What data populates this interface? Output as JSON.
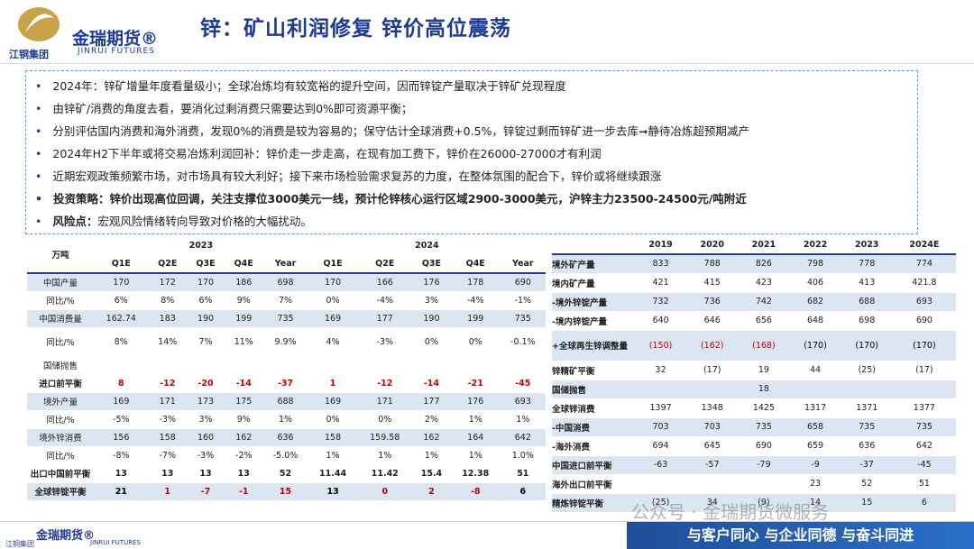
{
  "header": {
    "brand": "金瑞期货®",
    "brand_en": "JINRUI FUTURES",
    "group": "江铜集团",
    "title": "锌：矿山利润修复 锌价高位震荡"
  },
  "bullets": [
    {
      "text": "2024年：锌矿增量年度看量级小；全球冶炼均有较宽裕的提升空间，因而锌锭产量取决于锌矿兑现程度"
    },
    {
      "text": "由锌矿/消费的角度去看，要消化过剩消费只需要达到0%即可资源平衡；"
    },
    {
      "text": "分别评估国内消费和海外消费，发现0%的消费是较为容易的；保守估计全球消费+0.5%，锌锭过剩而锌矿进一步去库➞静待冶炼超预期减产"
    },
    {
      "text": "2024年H2下半年或将交易冶炼利润回补：锌价走一步走高，在现有加工费下，锌价在26000-27000才有利润"
    },
    {
      "text": "近期宏观政策频繁市场，对市场具有较大利好；接下来市场检验需求复苏的力度，在整体氛围的配合下，锌价或将继续跟涨"
    },
    {
      "text": "投资策略：锌价出现高位回调，关注支撑位3000美元一线，预计伦锌核心运行区域2900-3000美元，沪锌主力23500-24500元/吨附近",
      "bold": true
    },
    {
      "lead": "风险点：",
      "text": "宏观风险情绪转向导致对价格的大幅扰动。"
    }
  ],
  "left_table": {
    "corner": "万吨",
    "years": [
      "2023",
      "2024"
    ],
    "columns": [
      "Q1E",
      "Q2E",
      "Q3E",
      "Q4E",
      "Year",
      "Q1E",
      "Q2E",
      "Q3E",
      "Q4E",
      "Year"
    ],
    "rows": [
      {
        "label": "中国产量",
        "values": [
          "170",
          "172",
          "170",
          "186",
          "698",
          "170",
          "166",
          "176",
          "178",
          "690"
        ],
        "shade": true
      },
      {
        "label": "同比/%",
        "values": [
          "6%",
          "8%",
          "6%",
          "9%",
          "7%",
          "0%",
          "-4%",
          "3%",
          "-4%",
          "-1%"
        ]
      },
      {
        "label": "中国消费量",
        "values": [
          "162.74",
          "183",
          "190",
          "199",
          "735",
          "169",
          "177",
          "190",
          "199",
          "735"
        ],
        "shade": true
      },
      {
        "label": "同比/%",
        "values": [
          "8%",
          "14%",
          "7%",
          "11%",
          "9.9%",
          "4%",
          "-3%",
          "0%",
          "0%",
          "-0.1%"
        ],
        "tall": true
      },
      {
        "label": "国储抛售",
        "values": [
          null,
          null,
          null,
          null,
          null,
          null,
          null,
          null,
          null,
          null
        ]
      },
      {
        "label": "进口前平衡",
        "values": [
          "8",
          "-12",
          "-20",
          "-14",
          "-37",
          "1",
          "-12",
          "-14",
          "-21",
          "-45"
        ],
        "bold": true,
        "colors": [
          "#c00000",
          "#c00000",
          "#c00000",
          "#c00000",
          "#c00000",
          "#c00000",
          "#c00000",
          "#c00000",
          "#c00000",
          "#c00000"
        ]
      },
      {
        "label": "境外产量",
        "values": [
          "169",
          "171",
          "173",
          "175",
          "688",
          "169",
          "171",
          "177",
          "176",
          "693"
        ],
        "shade": true
      },
      {
        "label": "同比/%",
        "values": [
          "-5%",
          "-3%",
          "3%",
          "9%",
          "1%",
          "0%",
          "0%",
          "2%",
          "1%",
          "1%"
        ]
      },
      {
        "label": "境外锌消费",
        "values": [
          "156",
          "158",
          "160",
          "162",
          "636",
          "158",
          "159.58",
          "162",
          "164",
          "642"
        ],
        "shade": true
      },
      {
        "label": "同比/%",
        "values": [
          "-8%",
          "-7%",
          "-3%",
          "-2%",
          "-5.0%",
          "1%",
          "1%",
          "1%",
          "1%",
          "1.0%"
        ]
      },
      {
        "label": "出口中国前平衡",
        "values": [
          "13",
          "13",
          "13",
          "13",
          "52",
          "11.44",
          "11.42",
          "15.4",
          "12.38",
          "51"
        ],
        "bold": true
      },
      {
        "label": "全球锌锭平衡",
        "values": [
          "21",
          "1",
          "-7",
          "-1",
          "15",
          "13",
          "0",
          "2",
          "-8",
          "6"
        ],
        "bold": true,
        "shade": true,
        "colors": [
          "#000000",
          "#c00000",
          "#c00000",
          "#c00000",
          "#c00000",
          "#000000",
          "#c00000",
          "#c00000",
          "#c00000",
          "#000000"
        ]
      }
    ]
  },
  "right_table": {
    "columns": [
      "2019",
      "2020",
      "2021",
      "2022",
      "2023",
      "2024E"
    ],
    "rows": [
      {
        "label": "境外矿产量",
        "values": [
          "833",
          "788",
          "826",
          "798",
          "778",
          "774"
        ],
        "shade": true
      },
      {
        "label": "境内矿产量",
        "values": [
          "421",
          "415",
          "423",
          "406",
          "413",
          "421.8"
        ]
      },
      {
        "label": "-境外锌锭产量",
        "values": [
          "732",
          "736",
          "742",
          "682",
          "688",
          "693"
        ],
        "shade": true
      },
      {
        "label": "-境内锌锭产量",
        "values": [
          "640",
          "646",
          "656",
          "648",
          "698",
          "690"
        ]
      },
      {
        "label": "+全球再生锌调整量",
        "values": [
          "(150)",
          "(162)",
          "(168)",
          "(170)",
          "(170)",
          "(170)"
        ],
        "shade": true,
        "tall": true,
        "colors": [
          "#c00000",
          "#c00000",
          "#c00000",
          "#000000",
          "#000000",
          "#000000"
        ]
      },
      {
        "label": "锌精矿平衡",
        "values": [
          "32",
          "(17)",
          "19",
          "44",
          "(25)",
          "(17)"
        ]
      },
      {
        "label": "国储抛售",
        "values": [
          null,
          null,
          "18",
          null,
          null,
          null
        ],
        "shade": true
      },
      {
        "label": "全球锌消费",
        "values": [
          "1397",
          "1348",
          "1425",
          "1317",
          "1371",
          "1377"
        ]
      },
      {
        "label": "-中国消费",
        "values": [
          "703",
          "703",
          "735",
          "658",
          "735",
          "735"
        ],
        "shade": true
      },
      {
        "label": "-海外消费",
        "values": [
          "694",
          "645",
          "690",
          "659",
          "636",
          "642"
        ]
      },
      {
        "label": "中国进口前平衡",
        "values": [
          "-63",
          "-57",
          "-79",
          "-9",
          "-37",
          "-45"
        ],
        "shade": true
      },
      {
        "label": "海外出口前平衡",
        "values": [
          null,
          null,
          null,
          "23",
          "52",
          "51"
        ]
      },
      {
        "label": "精炼锌锭平衡",
        "values": [
          "(25)",
          "34",
          "(9)",
          "14",
          "15",
          "6"
        ],
        "shade": true
      }
    ]
  },
  "footer": {
    "watermark": "公众号 · 金瑞期货微服务",
    "slogan": "与客户同心 与企业同德 与奋斗同进"
  }
}
